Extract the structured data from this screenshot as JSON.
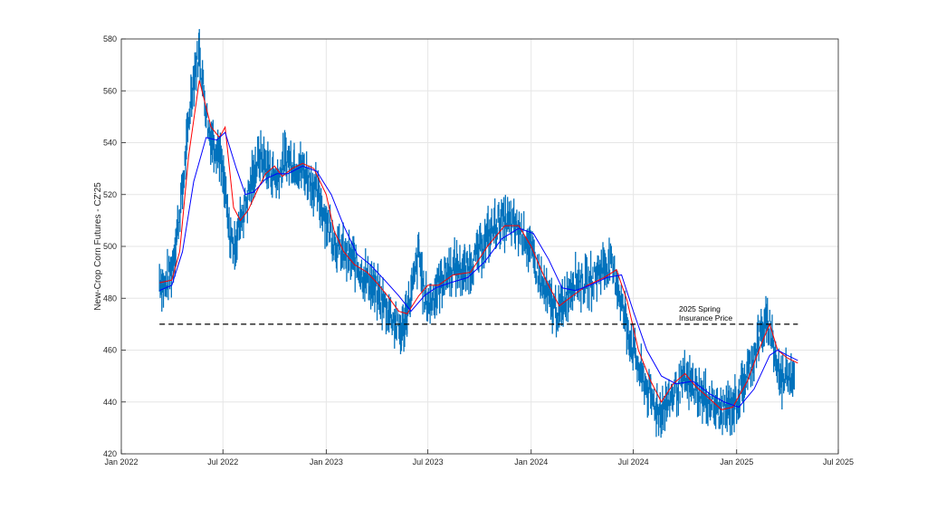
{
  "chart_data": {
    "type": "line",
    "title": "",
    "xlabel": "",
    "ylabel": "New-Crop Corn Futures - CZ'25",
    "ylim": [
      420,
      580
    ],
    "yticks": [
      420,
      440,
      460,
      480,
      500,
      520,
      540,
      560,
      580
    ],
    "xlim": [
      "2022-01-01",
      "2025-07-01"
    ],
    "xticks": [
      {
        "date": "2022-01-01",
        "label": "Jan 2022"
      },
      {
        "date": "2022-07-01",
        "label": "Jul 2022"
      },
      {
        "date": "2023-01-01",
        "label": "Jan 2023"
      },
      {
        "date": "2023-07-01",
        "label": "Jul 2023"
      },
      {
        "date": "2024-01-01",
        "label": "Jan 2024"
      },
      {
        "date": "2024-07-01",
        "label": "Jul 2024"
      },
      {
        "date": "2025-01-01",
        "label": "Jan 2025"
      },
      {
        "date": "2025-07-01",
        "label": "Jul 2025"
      }
    ],
    "grid": true,
    "legend": "none",
    "series": [
      {
        "kind": "ohlc-range-bars",
        "color": "#0072BD",
        "points": [
          [
            "2022-03-10",
            488
          ],
          [
            "2022-03-20",
            484
          ],
          [
            "2022-04-01",
            492
          ],
          [
            "2022-04-10",
            505
          ],
          [
            "2022-04-20",
            522
          ],
          [
            "2022-04-28",
            540
          ],
          [
            "2022-05-05",
            558
          ],
          [
            "2022-05-12",
            568
          ],
          [
            "2022-05-20",
            575
          ],
          [
            "2022-05-28",
            560
          ],
          [
            "2022-06-05",
            545
          ],
          [
            "2022-06-15",
            540
          ],
          [
            "2022-06-25",
            536
          ],
          [
            "2022-07-05",
            520
          ],
          [
            "2022-07-12",
            505
          ],
          [
            "2022-07-22",
            500
          ],
          [
            "2022-08-01",
            510
          ],
          [
            "2022-08-15",
            520
          ],
          [
            "2022-08-25",
            528
          ],
          [
            "2022-09-05",
            535
          ],
          [
            "2022-09-20",
            530
          ],
          [
            "2022-10-05",
            526
          ],
          [
            "2022-10-20",
            534
          ],
          [
            "2022-11-05",
            532
          ],
          [
            "2022-11-20",
            530
          ],
          [
            "2022-12-05",
            525
          ],
          [
            "2022-12-20",
            518
          ],
          [
            "2023-01-05",
            508
          ],
          [
            "2023-01-20",
            500
          ],
          [
            "2023-02-05",
            496
          ],
          [
            "2023-02-20",
            494
          ],
          [
            "2023-03-05",
            490
          ],
          [
            "2023-03-20",
            486
          ],
          [
            "2023-04-05",
            480
          ],
          [
            "2023-04-20",
            476
          ],
          [
            "2023-05-05",
            470
          ],
          [
            "2023-05-15",
            466
          ],
          [
            "2023-05-25",
            475
          ],
          [
            "2023-06-05",
            485
          ],
          [
            "2023-06-15",
            498
          ],
          [
            "2023-06-25",
            480
          ],
          [
            "2023-07-05",
            478
          ],
          [
            "2023-07-15",
            483
          ],
          [
            "2023-07-25",
            487
          ],
          [
            "2023-08-05",
            490
          ],
          [
            "2023-08-20",
            492
          ],
          [
            "2023-09-05",
            490
          ],
          [
            "2023-09-20",
            494
          ],
          [
            "2023-10-05",
            500
          ],
          [
            "2023-10-20",
            505
          ],
          [
            "2023-11-05",
            510
          ],
          [
            "2023-11-20",
            509
          ],
          [
            "2023-12-05",
            507
          ],
          [
            "2023-12-20",
            505
          ],
          [
            "2024-01-05",
            495
          ],
          [
            "2024-01-20",
            485
          ],
          [
            "2024-02-05",
            478
          ],
          [
            "2024-02-20",
            474
          ],
          [
            "2024-03-05",
            482
          ],
          [
            "2024-03-20",
            488
          ],
          [
            "2024-04-05",
            485
          ],
          [
            "2024-04-20",
            487
          ],
          [
            "2024-05-05",
            492
          ],
          [
            "2024-05-20",
            493
          ],
          [
            "2024-06-01",
            487
          ],
          [
            "2024-06-15",
            473
          ],
          [
            "2024-07-01",
            460
          ],
          [
            "2024-07-15",
            450
          ],
          [
            "2024-08-01",
            442
          ],
          [
            "2024-08-15",
            436
          ],
          [
            "2024-09-01",
            440
          ],
          [
            "2024-09-15",
            445
          ],
          [
            "2024-10-01",
            448
          ],
          [
            "2024-10-15",
            446
          ],
          [
            "2024-11-01",
            442
          ],
          [
            "2024-11-15",
            440
          ],
          [
            "2024-12-01",
            436
          ],
          [
            "2024-12-15",
            437
          ],
          [
            "2025-01-01",
            440
          ],
          [
            "2025-01-15",
            448
          ],
          [
            "2025-02-01",
            458
          ],
          [
            "2025-02-15",
            468
          ],
          [
            "2025-03-01",
            470
          ],
          [
            "2025-03-10",
            458
          ],
          [
            "2025-03-20",
            448
          ],
          [
            "2025-04-01",
            452
          ],
          [
            "2025-04-15",
            450
          ]
        ]
      },
      {
        "kind": "moving-average-fast",
        "color": "#FF0000",
        "points": [
          [
            "2022-03-10",
            486
          ],
          [
            "2022-04-01",
            487
          ],
          [
            "2022-04-15",
            498
          ],
          [
            "2022-05-01",
            535
          ],
          [
            "2022-05-20",
            564
          ],
          [
            "2022-06-10",
            546
          ],
          [
            "2022-06-25",
            542
          ],
          [
            "2022-07-05",
            546
          ],
          [
            "2022-07-20",
            515
          ],
          [
            "2022-08-01",
            510
          ],
          [
            "2022-08-15",
            514
          ],
          [
            "2022-09-01",
            522
          ],
          [
            "2022-09-15",
            528
          ],
          [
            "2022-10-01",
            531
          ],
          [
            "2022-10-15",
            527
          ],
          [
            "2022-11-01",
            530
          ],
          [
            "2022-11-20",
            532
          ],
          [
            "2022-12-10",
            530
          ],
          [
            "2023-01-01",
            520
          ],
          [
            "2023-01-15",
            506
          ],
          [
            "2023-02-01",
            498
          ],
          [
            "2023-02-20",
            493
          ],
          [
            "2023-03-15",
            490
          ],
          [
            "2023-04-01",
            486
          ],
          [
            "2023-04-20",
            481
          ],
          [
            "2023-05-10",
            475
          ],
          [
            "2023-05-25",
            474
          ],
          [
            "2023-06-15",
            481
          ],
          [
            "2023-07-01",
            485
          ],
          [
            "2023-07-20",
            485
          ],
          [
            "2023-08-15",
            489
          ],
          [
            "2023-09-15",
            490
          ],
          [
            "2023-10-15",
            500
          ],
          [
            "2023-11-15",
            508
          ],
          [
            "2023-12-10",
            508
          ],
          [
            "2024-01-01",
            500
          ],
          [
            "2024-01-25",
            488
          ],
          [
            "2024-02-20",
            477
          ],
          [
            "2024-03-15",
            481
          ],
          [
            "2024-04-10",
            485
          ],
          [
            "2024-05-10",
            488
          ],
          [
            "2024-06-01",
            491
          ],
          [
            "2024-06-20",
            479
          ],
          [
            "2024-07-10",
            460
          ],
          [
            "2024-08-01",
            448
          ],
          [
            "2024-08-20",
            440
          ],
          [
            "2024-09-10",
            447
          ],
          [
            "2024-10-01",
            451
          ],
          [
            "2024-10-20",
            446
          ],
          [
            "2024-11-15",
            441
          ],
          [
            "2024-12-05",
            437
          ],
          [
            "2024-12-25",
            438
          ],
          [
            "2025-01-20",
            448
          ],
          [
            "2025-02-15",
            463
          ],
          [
            "2025-03-01",
            470
          ],
          [
            "2025-03-15",
            460
          ],
          [
            "2025-04-01",
            457
          ],
          [
            "2025-04-20",
            455
          ]
        ]
      },
      {
        "kind": "moving-average-slow",
        "color": "#0000FF",
        "points": [
          [
            "2022-03-10",
            483
          ],
          [
            "2022-04-01",
            485
          ],
          [
            "2022-04-20",
            498
          ],
          [
            "2022-05-10",
            525
          ],
          [
            "2022-06-01",
            542
          ],
          [
            "2022-06-20",
            541
          ],
          [
            "2022-07-05",
            544
          ],
          [
            "2022-07-25",
            530
          ],
          [
            "2022-08-10",
            520
          ],
          [
            "2022-08-25",
            521
          ],
          [
            "2022-09-15",
            526
          ],
          [
            "2022-10-05",
            528
          ],
          [
            "2022-10-25",
            528
          ],
          [
            "2022-11-20",
            531
          ],
          [
            "2022-12-15",
            529
          ],
          [
            "2023-01-10",
            520
          ],
          [
            "2023-02-01",
            508
          ],
          [
            "2023-02-25",
            497
          ],
          [
            "2023-03-20",
            493
          ],
          [
            "2023-04-15",
            487
          ],
          [
            "2023-05-10",
            481
          ],
          [
            "2023-06-01",
            475
          ],
          [
            "2023-06-25",
            481
          ],
          [
            "2023-07-15",
            484
          ],
          [
            "2023-08-10",
            486
          ],
          [
            "2023-09-10",
            488
          ],
          [
            "2023-10-10",
            494
          ],
          [
            "2023-11-10",
            503
          ],
          [
            "2023-12-10",
            507
          ],
          [
            "2024-01-05",
            505
          ],
          [
            "2024-02-01",
            495
          ],
          [
            "2024-02-25",
            484
          ],
          [
            "2024-03-20",
            483
          ],
          [
            "2024-04-15",
            485
          ],
          [
            "2024-05-15",
            488
          ],
          [
            "2024-06-10",
            489
          ],
          [
            "2024-07-01",
            475
          ],
          [
            "2024-07-25",
            460
          ],
          [
            "2024-08-20",
            450
          ],
          [
            "2024-09-15",
            447
          ],
          [
            "2024-10-15",
            448
          ],
          [
            "2024-11-15",
            443
          ],
          [
            "2024-12-10",
            440
          ],
          [
            "2025-01-05",
            438
          ],
          [
            "2025-02-01",
            445
          ],
          [
            "2025-03-01",
            458
          ],
          [
            "2025-03-15",
            460
          ],
          [
            "2025-04-01",
            458
          ],
          [
            "2025-04-20",
            456
          ]
        ]
      }
    ],
    "reference_line": {
      "y": 470,
      "x_start": "2022-03-10",
      "x_end": "2025-04-20",
      "style": "dashed",
      "color": "#000000",
      "label_lines": [
        "2025 Spring",
        "Insurance Price"
      ]
    }
  }
}
